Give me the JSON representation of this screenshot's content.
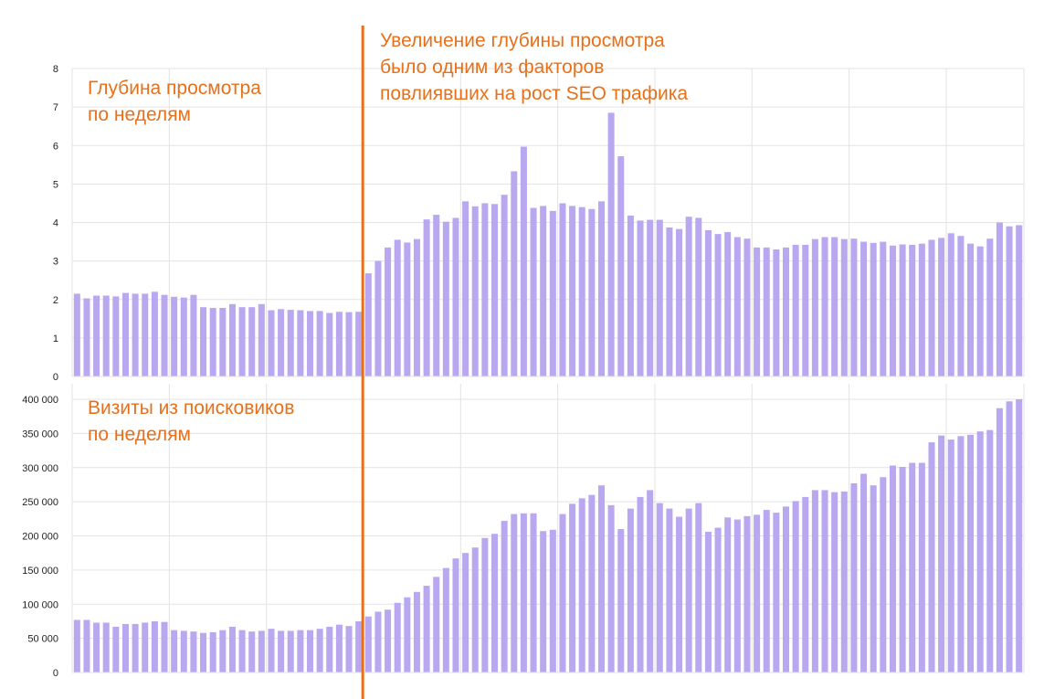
{
  "colors": {
    "bar": "#B9A8F0",
    "grid": "#E3E3E3",
    "annotation": "#E8701A",
    "tick": "#222222"
  },
  "annotations": {
    "top_line1": "Глубина просмотра",
    "top_line2": "по неделям",
    "bottom_line1": "Визиты из поисковиков",
    "bottom_line2": "по неделям",
    "main_line1": "Увеличение глубины просмотра",
    "main_line2": "было одним из факторов",
    "main_line3": "повлиявших на рост SEO трафика"
  },
  "chart_data": [
    {
      "type": "bar",
      "title": "Глубина просмотра по неделям",
      "ylim": [
        0,
        8
      ],
      "yticks": [
        "0",
        "1",
        "2",
        "3",
        "4",
        "5",
        "6",
        "7",
        "8"
      ],
      "grid": true,
      "marker_after_index": 29,
      "values": [
        2.15,
        2.03,
        2.1,
        2.1,
        2.08,
        2.17,
        2.15,
        2.15,
        2.2,
        2.12,
        2.07,
        2.05,
        2.12,
        1.8,
        1.78,
        1.78,
        1.88,
        1.8,
        1.8,
        1.88,
        1.72,
        1.75,
        1.73,
        1.72,
        1.7,
        1.7,
        1.65,
        1.68,
        1.67,
        1.68,
        2.68,
        3.0,
        3.35,
        3.55,
        3.48,
        3.57,
        4.08,
        4.2,
        4.02,
        4.12,
        4.55,
        4.42,
        4.5,
        4.48,
        4.72,
        5.33,
        5.97,
        4.38,
        4.43,
        4.3,
        4.5,
        4.43,
        4.4,
        4.35,
        4.55,
        6.85,
        5.72,
        4.18,
        4.05,
        4.07,
        4.07,
        3.87,
        3.83,
        4.15,
        4.12,
        3.8,
        3.7,
        3.75,
        3.62,
        3.58,
        3.35,
        3.35,
        3.3,
        3.35,
        3.42,
        3.42,
        3.57,
        3.62,
        3.62,
        3.57,
        3.58,
        3.5,
        3.47,
        3.5,
        3.4,
        3.43,
        3.42,
        3.45,
        3.55,
        3.6,
        3.72,
        3.65,
        3.45,
        3.38,
        3.58,
        4.0,
        3.9,
        3.93
      ]
    },
    {
      "type": "bar",
      "title": "Визиты из поисковиков по неделям",
      "ylim": [
        0,
        400000
      ],
      "yticks": [
        "0",
        "50 000",
        "100 000",
        "150 000",
        "200 000",
        "250 000",
        "300 000",
        "350 000",
        "400 000"
      ],
      "grid": true,
      "marker_after_index": 29,
      "values": [
        77000,
        77000,
        73000,
        73000,
        67000,
        71000,
        71000,
        73000,
        75000,
        74000,
        62000,
        61000,
        60000,
        58000,
        59000,
        62000,
        67000,
        62000,
        60000,
        61000,
        64000,
        61000,
        61000,
        62000,
        62000,
        64000,
        67000,
        70000,
        68000,
        75000,
        82000,
        89000,
        92000,
        102000,
        110000,
        118000,
        127000,
        140000,
        153000,
        167000,
        175000,
        183000,
        197000,
        203000,
        222000,
        232000,
        233000,
        233000,
        207000,
        209000,
        232000,
        247000,
        255000,
        260000,
        274000,
        245000,
        210000,
        240000,
        257000,
        267000,
        248000,
        240000,
        228000,
        240000,
        248000,
        206000,
        212000,
        227000,
        224000,
        229000,
        231000,
        238000,
        234000,
        243000,
        251000,
        257000,
        267000,
        267000,
        264000,
        265000,
        277000,
        291000,
        274000,
        286000,
        303000,
        301000,
        307000,
        307000,
        337000,
        347000,
        341000,
        346000,
        348000,
        353000,
        355000,
        387000,
        397000,
        400000
      ]
    }
  ]
}
